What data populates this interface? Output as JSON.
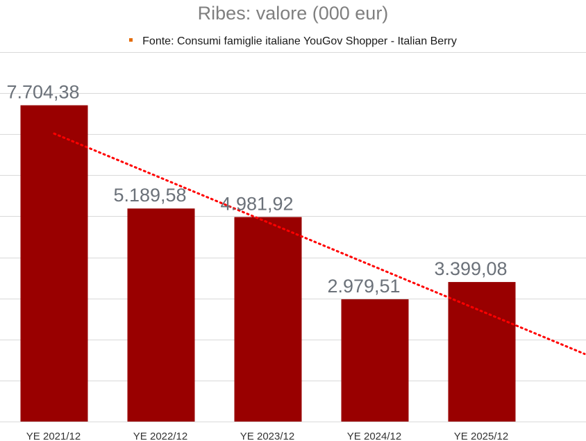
{
  "chart_data": {
    "type": "bar",
    "title": "Ribes: valore (000 eur)",
    "categories": [
      "YE 2021/12",
      "YE 2022/12",
      "YE 2023/12",
      "YE 2024/12",
      "YE 2025/12"
    ],
    "values": [
      7704.38,
      5189.58,
      4981.92,
      2979.51,
      3399.08
    ],
    "value_labels": [
      "7.704,38",
      "5.189,58",
      "4.981,92",
      "2.979,51",
      "3.399,08"
    ],
    "series": [
      {
        "name": "Fonte: Consumi famiglie italiane YouGov Shopper - Italian Berry",
        "values": [
          7704.38,
          5189.58,
          4981.92,
          2979.51,
          3399.08
        ]
      }
    ],
    "trendline": {
      "type": "linear",
      "style": "dotted"
    },
    "xlabel": "",
    "ylabel": "",
    "ylim": [
      0,
      9000
    ],
    "grid": true,
    "legend_position": "top",
    "colors": {
      "bar": "#990000",
      "trendline": "#ff0000",
      "legend_marker": "#e46c0a",
      "grid": "#d9d9d9",
      "value_label": "#6b7179",
      "title": "#7f7f7f"
    }
  }
}
